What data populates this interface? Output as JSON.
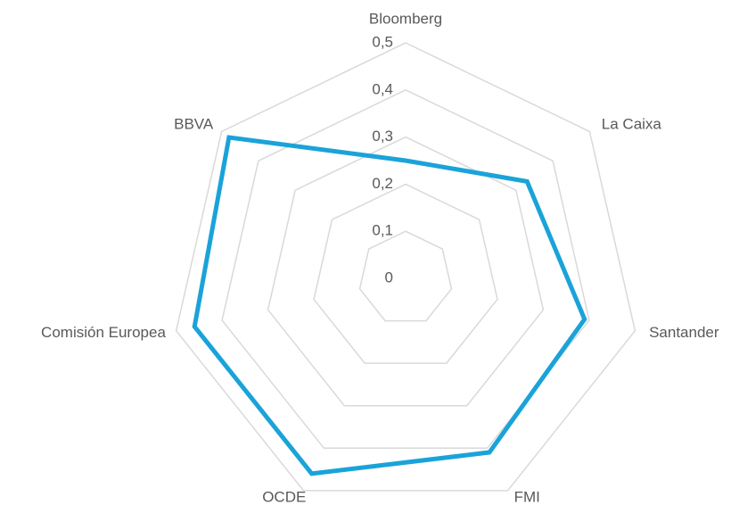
{
  "chart_data": {
    "type": "radar",
    "categories": [
      "Bloomberg",
      "La Caixa",
      "Santander",
      "FMI",
      "OCDE",
      "Comisión Europea",
      "BBVA"
    ],
    "series": [
      {
        "color": "#1aa3d9",
        "values": [
          0.25,
          0.33,
          0.39,
          0.41,
          0.46,
          0.46,
          0.48
        ]
      }
    ],
    "ylim": [
      0,
      0.5
    ],
    "yticks": [
      0,
      {
        "value": 0.1,
        "label": "0,1"
      },
      {
        "value": 0.2,
        "label": "0,2"
      },
      {
        "value": 0.3,
        "label": "0,3"
      },
      {
        "value": 0.4,
        "label": "0,4"
      },
      {
        "value": 0.5,
        "label": "0,5"
      }
    ],
    "grid": true
  }
}
